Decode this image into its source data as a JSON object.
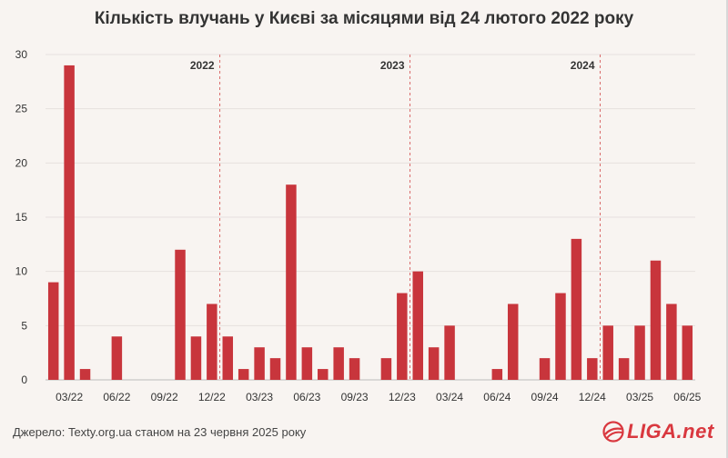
{
  "chart_data": {
    "type": "bar",
    "title": "Кількість влучань у Києві за місяцями від 24 лютого 2022 року",
    "xlabel": "",
    "ylabel": "",
    "ylim": [
      0,
      30
    ],
    "yticks": [
      "0",
      "5",
      "10",
      "15",
      "20",
      "25",
      "30"
    ],
    "grid": true,
    "categories": [
      "02/22",
      "03/22",
      "04/22",
      "05/22",
      "06/22",
      "07/22",
      "08/22",
      "09/22",
      "10/22",
      "11/22",
      "12/22",
      "01/23",
      "02/23",
      "03/23",
      "04/23",
      "05/23",
      "06/23",
      "07/23",
      "08/23",
      "09/23",
      "10/23",
      "11/23",
      "12/23",
      "01/24",
      "02/24",
      "03/24",
      "04/24",
      "05/24",
      "06/24",
      "07/24",
      "08/24",
      "09/24",
      "10/24",
      "11/24",
      "12/24",
      "01/25",
      "02/25",
      "03/25",
      "04/25",
      "05/25",
      "06/25"
    ],
    "values": [
      9,
      29,
      1,
      0,
      4,
      0,
      0,
      0,
      12,
      4,
      7,
      4,
      1,
      3,
      2,
      18,
      3,
      1,
      3,
      2,
      0,
      2,
      8,
      10,
      3,
      5,
      0,
      0,
      1,
      7,
      0,
      2,
      8,
      13,
      2,
      5,
      2,
      5,
      11,
      7,
      5
    ],
    "x_tick_labels": [
      "03/22",
      "06/22",
      "09/22",
      "12/22",
      "03/23",
      "06/23",
      "09/23",
      "12/23",
      "03/24",
      "06/24",
      "09/24",
      "12/24",
      "03/25",
      "06/25"
    ],
    "bar_color": "#c8353c",
    "annotations": [
      {
        "label": "2022",
        "before_category": "01/23"
      },
      {
        "label": "2023",
        "before_category": "01/24"
      },
      {
        "label": "2024",
        "before_category": "01/25"
      }
    ]
  },
  "footer": {
    "source": "Джерело: Texty.org.ua станом на 23 червня 2025 року",
    "logo_text": "LIGA.net"
  },
  "colors": {
    "background": "#f8f4f1",
    "accent": "#d9383f"
  }
}
